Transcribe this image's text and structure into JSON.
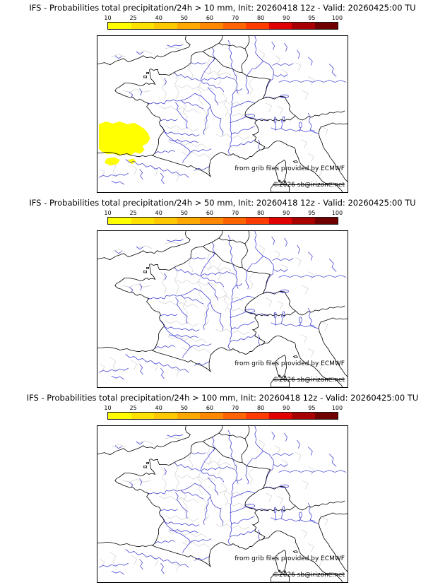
{
  "panels": [
    {
      "title": "IFS - Probabilities total precipitation/24h > 10 mm, Init: 20260418 12z - Valid: 20260425:00 TU",
      "overlay": true
    },
    {
      "title": "IFS - Probabilities total precipitation/24h > 50 mm, Init: 20260418 12z - Valid: 20260425:00 TU",
      "overlay": false
    },
    {
      "title": "IFS - Probabilities total precipitation/24h > 100 mm, Init: 20260418 12z - Valid: 20260425:00 TU",
      "overlay": false
    }
  ],
  "colorbar": {
    "labels": [
      "10",
      "25",
      "40",
      "50",
      "60",
      "70",
      "80",
      "90",
      "95",
      "100"
    ],
    "colors": [
      "#ffff00",
      "#ffe100",
      "#ffc800",
      "#ffa800",
      "#ff8800",
      "#ff6400",
      "#ff3c00",
      "#e10000",
      "#a80000",
      "#700000"
    ]
  },
  "attribution": {
    "line1": "from grib files provided by ECMWF",
    "line2": "©2026 sb@irizone.net"
  },
  "map": {
    "colors": {
      "coastline": "#000000",
      "rivers": "#2e2ed2",
      "departments": "#b4b4b4",
      "overlay_fill": "#ffff00"
    }
  }
}
